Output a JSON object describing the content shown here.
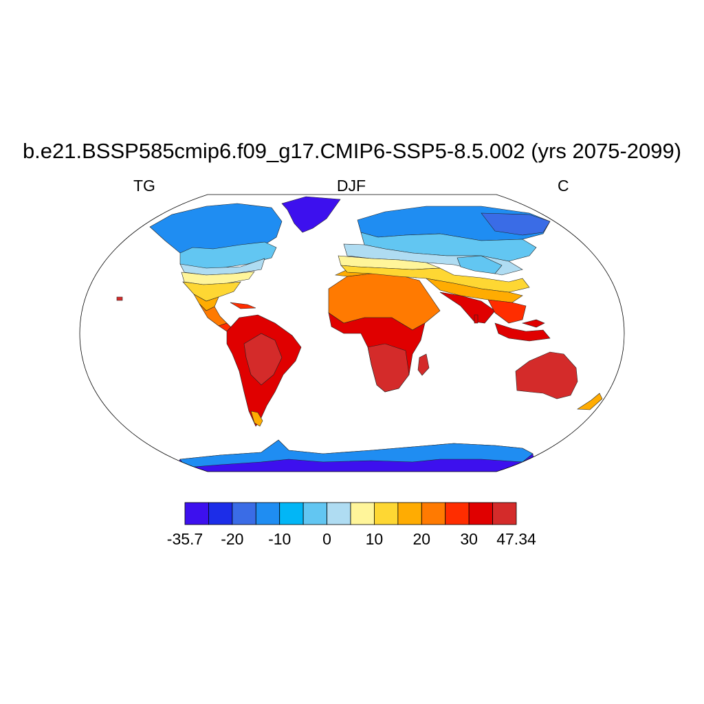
{
  "title": "b.e21.BSSP585cmip6.f09_g17.CMIP6-SSP5-8.5.002 (yrs 2075-2099)",
  "left_label": "TG",
  "center_label": "DJF",
  "right_label": "C",
  "map": {
    "projection": "Robinson",
    "field": "surface temperature over land",
    "land_only": true
  },
  "colorbar": {
    "colors": [
      "#3d10ee",
      "#1c2de8",
      "#3a6ce6",
      "#1f8df2",
      "#02b6f6",
      "#62c6f2",
      "#afdcf2",
      "#fff59a",
      "#fed733",
      "#ffac02",
      "#ff7a01",
      "#ff2d00",
      "#e00000",
      "#d42b2a"
    ],
    "tick_labels": [
      "-35.7",
      "-20",
      "-10",
      "0",
      "10",
      "20",
      "30",
      "47.34"
    ],
    "min": -35.7,
    "max": 47.34
  }
}
